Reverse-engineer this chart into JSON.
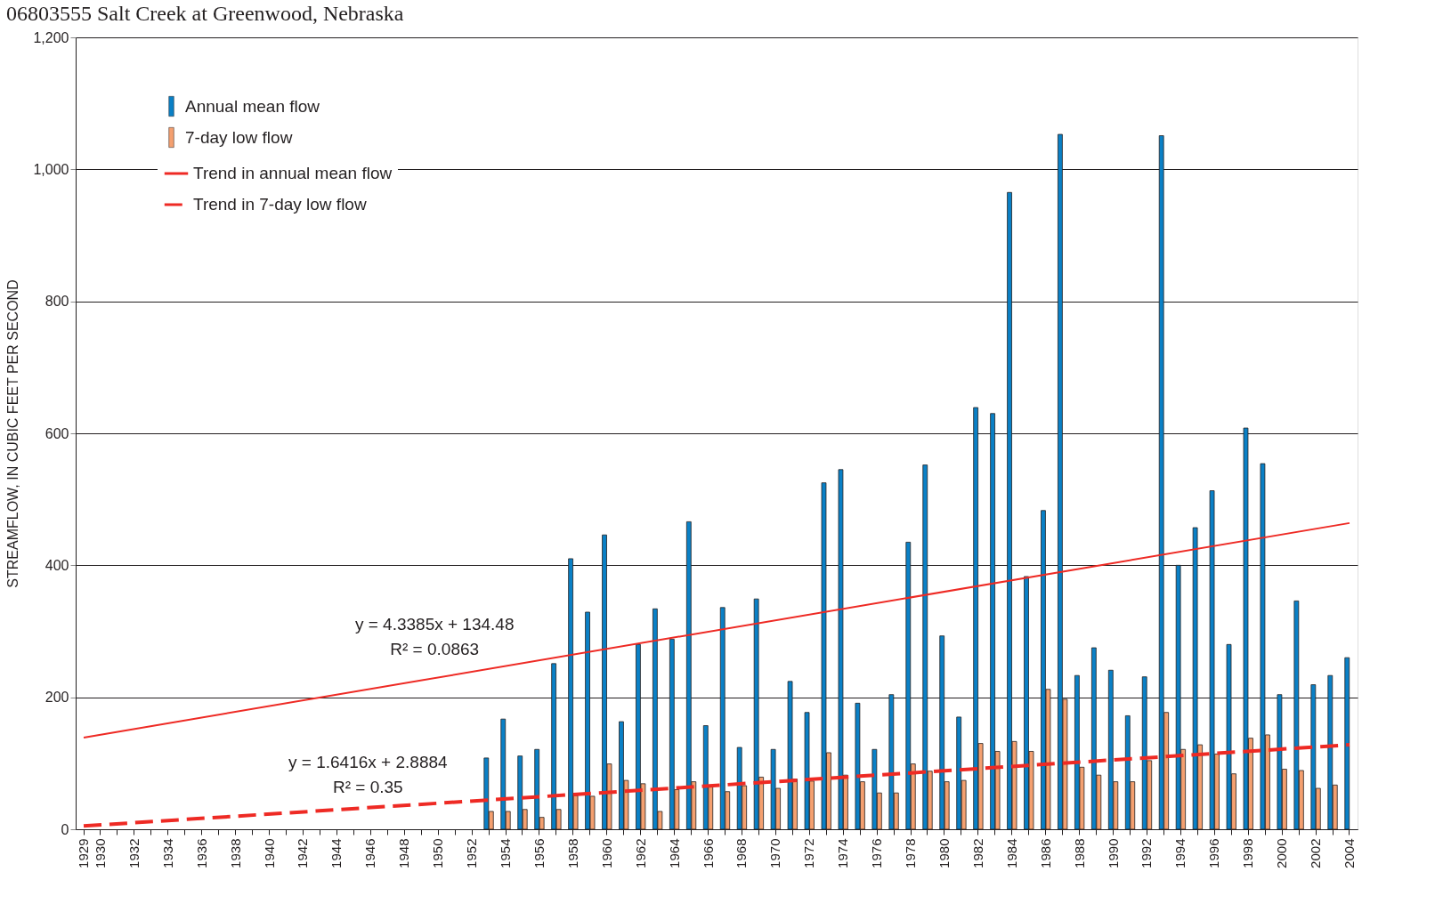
{
  "chart_data": {
    "type": "bar",
    "title": "06803555 Salt Creek at Greenwood, Nebraska",
    "ylabel": "STREAMFLOW, IN CUBIC FEET PER SECOND",
    "categories": [
      "1929",
      "1930",
      null,
      "1932",
      null,
      "1934",
      null,
      "1936",
      null,
      "1938",
      null,
      "1940",
      null,
      "1942",
      null,
      "1944",
      null,
      "1946",
      null,
      "1948",
      null,
      "1950",
      null,
      "1952",
      null,
      "1954",
      null,
      "1956",
      null,
      "1958",
      null,
      "1960",
      null,
      "1962",
      null,
      "1964",
      null,
      "1966",
      null,
      "1968",
      null,
      "1970",
      null,
      "1972",
      null,
      "1974",
      null,
      "1976",
      null,
      "1978",
      null,
      "1980",
      null,
      "1982",
      null,
      "1984",
      null,
      "1986",
      null,
      "1988",
      null,
      "1990",
      null,
      "1992",
      null,
      "1994",
      null,
      "1996",
      null,
      "1998",
      null,
      "2000",
      null,
      "2002",
      null,
      "2004"
    ],
    "series": [
      {
        "name": "Annual mean flow",
        "color": "#0a80c6",
        "values": [
          null,
          null,
          null,
          null,
          null,
          null,
          null,
          null,
          null,
          null,
          null,
          null,
          null,
          null,
          null,
          null,
          null,
          null,
          null,
          null,
          null,
          null,
          null,
          null,
          108,
          167,
          111,
          121,
          251,
          410,
          329,
          446,
          163,
          280,
          334,
          288,
          466,
          157,
          336,
          124,
          349,
          121,
          224,
          177,
          525,
          545,
          191,
          121,
          204,
          435,
          552,
          293,
          170,
          639,
          630,
          965,
          383,
          483,
          1053,
          233,
          275,
          241,
          172,
          231,
          1051,
          400,
          457,
          513,
          280,
          608,
          554,
          204,
          346,
          219,
          233,
          260
        ]
      },
      {
        "name": "7-day low flow",
        "color": "#f4a070",
        "values": [
          null,
          null,
          null,
          null,
          null,
          null,
          null,
          null,
          null,
          null,
          null,
          null,
          null,
          null,
          null,
          null,
          null,
          null,
          null,
          null,
          null,
          null,
          null,
          null,
          27,
          27,
          30,
          18,
          30,
          51,
          50,
          99,
          74,
          69,
          27,
          60,
          72,
          64,
          57,
          66,
          79,
          62,
          76,
          73,
          116,
          82,
          72,
          55,
          55,
          99,
          88,
          72,
          74,
          130,
          118,
          133,
          118,
          212,
          197,
          94,
          82,
          72,
          72,
          104,
          177,
          121,
          128,
          114,
          84,
          138,
          143,
          91,
          89,
          62,
          67,
          null
        ]
      },
      {
        "name": "Trend in annual mean flow",
        "type": "line",
        "line_style": "solid",
        "color": "#ee2a24",
        "values": [
          139,
          null,
          null,
          null,
          null,
          null,
          null,
          null,
          null,
          null,
          null,
          null,
          null,
          null,
          null,
          null,
          null,
          null,
          null,
          null,
          null,
          null,
          null,
          null,
          null,
          null,
          null,
          null,
          null,
          null,
          null,
          null,
          null,
          null,
          null,
          null,
          null,
          null,
          null,
          null,
          null,
          null,
          null,
          null,
          null,
          null,
          null,
          null,
          null,
          null,
          null,
          null,
          null,
          null,
          null,
          null,
          null,
          null,
          null,
          null,
          null,
          null,
          null,
          null,
          null,
          null,
          null,
          null,
          null,
          null,
          null,
          null,
          null,
          null,
          null,
          464
        ]
      },
      {
        "name": "Trend in 7-day low flow",
        "type": "line",
        "line_style": "dashed",
        "color": "#ee2a24",
        "values": [
          5,
          null,
          null,
          null,
          null,
          null,
          null,
          null,
          null,
          null,
          null,
          null,
          null,
          null,
          null,
          null,
          null,
          null,
          null,
          null,
          null,
          null,
          null,
          null,
          null,
          null,
          null,
          null,
          null,
          null,
          null,
          null,
          null,
          null,
          null,
          null,
          null,
          null,
          null,
          null,
          null,
          null,
          null,
          null,
          null,
          null,
          null,
          null,
          null,
          null,
          null,
          null,
          null,
          null,
          null,
          null,
          null,
          null,
          null,
          null,
          null,
          null,
          null,
          null,
          null,
          null,
          null,
          null,
          null,
          null,
          null,
          null,
          null,
          null,
          null,
          128
        ]
      }
    ],
    "ylim": [
      0,
      1200
    ],
    "yticks": [
      0,
      200,
      400,
      600,
      800,
      {
        "value": 1000,
        "label": "1,000"
      },
      {
        "value": 1200,
        "label": "1,200"
      }
    ],
    "grid": "y",
    "legend": "top left",
    "marker": "none",
    "annotations": [
      "y = 4.3385x + 134.48",
      "R² = 0.0863",
      "y = 1.6416x + 2.8884",
      "R² = 0.35"
    ]
  }
}
